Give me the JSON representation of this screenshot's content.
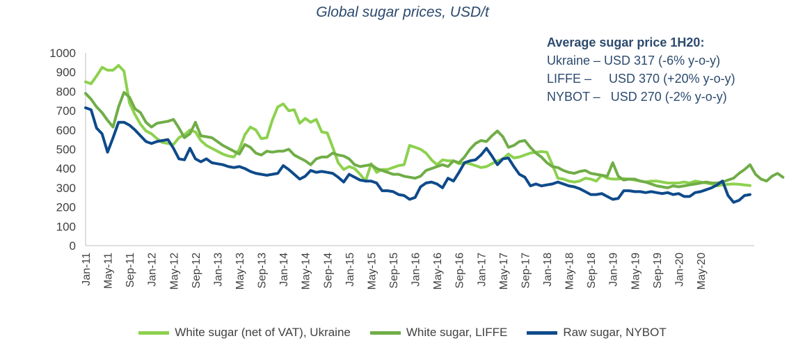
{
  "title": "Global sugar prices, USD/t",
  "annotation": {
    "heading": "Average sugar price 1H20:",
    "lines": [
      "Ukraine – USD 317 (-6% y-o-y)",
      "LIFFE –     USD 370 (+20% y-o-y)",
      "NYBOT –   USD 270 (-2% y-o-y)"
    ]
  },
  "chart_data": {
    "type": "line",
    "title": "Global sugar prices, USD/t",
    "ylim": [
      0,
      1000
    ],
    "yticks": [
      0,
      100,
      200,
      300,
      400,
      500,
      600,
      700,
      800,
      900,
      1000
    ],
    "x_start": "Jan-11",
    "x_end": "Jul-20",
    "grid": false,
    "legend_position": "bottom",
    "xtick_labels": [
      "Jan-11",
      "May-11",
      "Sep-11",
      "Jan-12",
      "May-12",
      "Sep-12",
      "Jan-13",
      "May-13",
      "Sep-13",
      "Jan-14",
      "May-14",
      "Sep-14",
      "Jan-15",
      "May-15",
      "Sep-15",
      "Jan-16",
      "May-16",
      "Sep-16",
      "Jan-17",
      "May-17",
      "Sep-17",
      "Jan-18",
      "May-18",
      "Sep-18",
      "Jan-19",
      "May-19",
      "Sep-19",
      "Jan-20",
      "May-20"
    ],
    "series": [
      {
        "name": "White sugar (net of VAT), Ukraine",
        "color": "#8dd14f",
        "values": [
          850,
          840,
          880,
          925,
          910,
          910,
          935,
          905,
          740,
          680,
          630,
          595,
          580,
          555,
          535,
          530,
          525,
          560,
          575,
          600,
          590,
          545,
          520,
          505,
          490,
          475,
          465,
          460,
          500,
          575,
          615,
          600,
          555,
          560,
          650,
          720,
          735,
          700,
          705,
          635,
          660,
          640,
          655,
          590,
          585,
          510,
          430,
          395,
          410,
          400,
          370,
          335,
          425,
          380,
          395,
          395,
          405,
          415,
          420,
          520,
          510,
          500,
          480,
          445,
          420,
          445,
          440,
          440,
          425,
          430,
          425,
          415,
          405,
          410,
          425,
          440,
          450,
          475,
          455,
          460,
          470,
          480,
          485,
          488,
          485,
          420,
          350,
          345,
          335,
          330,
          335,
          350,
          345,
          335,
          365,
          350,
          345,
          345,
          348,
          345,
          340,
          335,
          330,
          335,
          335,
          330,
          325,
          325,
          325,
          330,
          325,
          335,
          330,
          325,
          320,
          310,
          315,
          318,
          320,
          318,
          315,
          312
        ]
      },
      {
        "name": "White sugar, LIFFE",
        "color": "#70ad47",
        "values": [
          790,
          760,
          720,
          690,
          650,
          615,
          720,
          795,
          770,
          710,
          690,
          640,
          615,
          635,
          640,
          645,
          655,
          610,
          560,
          580,
          640,
          570,
          565,
          560,
          540,
          520,
          505,
          490,
          475,
          525,
          510,
          480,
          470,
          490,
          485,
          490,
          490,
          500,
          470,
          455,
          440,
          420,
          450,
          460,
          460,
          480,
          470,
          465,
          450,
          420,
          410,
          415,
          420,
          400,
          390,
          380,
          370,
          370,
          360,
          355,
          350,
          360,
          390,
          400,
          410,
          420,
          410,
          440,
          430,
          460,
          500,
          530,
          545,
          540,
          570,
          595,
          565,
          510,
          520,
          540,
          545,
          510,
          480,
          460,
          430,
          410,
          405,
          390,
          380,
          375,
          385,
          390,
          375,
          370,
          365,
          360,
          430,
          360,
          340,
          345,
          345,
          335,
          330,
          320,
          310,
          305,
          300,
          310,
          305,
          310,
          315,
          320,
          325,
          330,
          325,
          325,
          330,
          340,
          350,
          375,
          395,
          420,
          370,
          345,
          335,
          360,
          375,
          355
        ]
      },
      {
        "name": "Raw sugar, NYBOT",
        "color": "#0e4a8a",
        "values": [
          715,
          705,
          610,
          580,
          485,
          560,
          640,
          640,
          625,
          600,
          570,
          540,
          530,
          540,
          545,
          550,
          505,
          450,
          445,
          505,
          450,
          435,
          450,
          430,
          425,
          420,
          410,
          405,
          410,
          400,
          385,
          375,
          370,
          365,
          370,
          375,
          415,
          395,
          370,
          345,
          360,
          390,
          380,
          385,
          380,
          375,
          355,
          330,
          370,
          355,
          340,
          335,
          335,
          325,
          285,
          285,
          280,
          265,
          260,
          240,
          250,
          305,
          325,
          330,
          320,
          300,
          350,
          335,
          380,
          430,
          440,
          445,
          470,
          505,
          465,
          420,
          450,
          455,
          410,
          370,
          355,
          310,
          320,
          310,
          315,
          320,
          330,
          320,
          310,
          305,
          295,
          280,
          265,
          265,
          270,
          255,
          240,
          245,
          285,
          285,
          280,
          280,
          275,
          280,
          275,
          270,
          275,
          265,
          270,
          255,
          255,
          275,
          280,
          290,
          300,
          315,
          335,
          260,
          225,
          235,
          260,
          265
        ]
      }
    ]
  }
}
